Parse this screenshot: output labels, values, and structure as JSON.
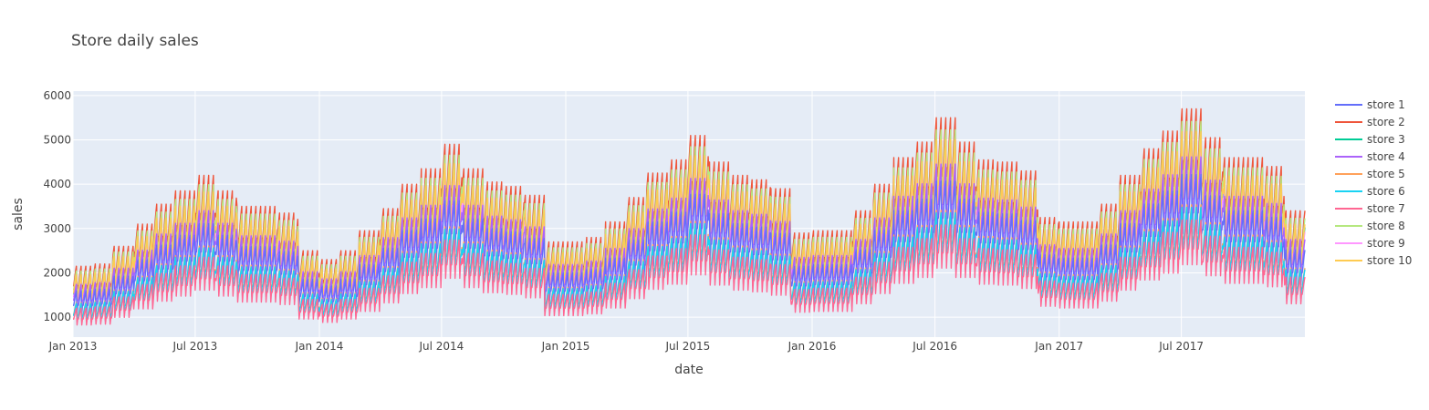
{
  "chart_data": {
    "type": "line",
    "title": "Store daily sales",
    "xlabel": "date",
    "ylabel": "sales",
    "x_range": [
      "2013-01-01",
      "2017-12-31"
    ],
    "y_range": [
      550,
      6100
    ],
    "x_tick_labels": [
      "Jan 2013",
      "Jul 2013",
      "Jan 2014",
      "Jul 2014",
      "Jan 2015",
      "Jul 2015",
      "Jan 2016",
      "Jul 2016",
      "Jan 2017",
      "Jul 2017"
    ],
    "x_tick_dates": [
      "2013-01-01",
      "2013-07-01",
      "2014-01-01",
      "2014-07-01",
      "2015-01-01",
      "2015-07-01",
      "2016-01-01",
      "2016-07-01",
      "2017-01-01",
      "2017-07-01"
    ],
    "y_ticks": [
      1000,
      2000,
      3000,
      4000,
      5000,
      6000
    ],
    "grid": true,
    "legend_position": "right",
    "plot_background": "#E5ECF6",
    "series": [
      {
        "name": "store 1",
        "color": "#636EFA",
        "level": 0.74
      },
      {
        "name": "store 2",
        "color": "#EF553B",
        "level": 1.0
      },
      {
        "name": "store 3",
        "color": "#00CC96",
        "level": 0.89
      },
      {
        "name": "store 4",
        "color": "#AB63FA",
        "level": 0.81
      },
      {
        "name": "store 5",
        "color": "#FFA15A",
        "level": 0.62
      },
      {
        "name": "store 6",
        "color": "#19D3F3",
        "level": 0.61
      },
      {
        "name": "store 7",
        "color": "#FF6692",
        "level": 0.56
      },
      {
        "name": "store 8",
        "color": "#B6E880",
        "level": 0.95
      },
      {
        "name": "store 9",
        "color": "#FF97FF",
        "level": 0.86
      },
      {
        "name": "store 10",
        "color": "#FECB52",
        "level": 0.91
      }
    ],
    "base_monthly_sales_store2": {
      "2013": [
        2150,
        2200,
        2600,
        3100,
        3550,
        3850,
        4200,
        3850,
        3500,
        3500,
        3350,
        2500
      ],
      "2014": [
        2300,
        2500,
        2950,
        3450,
        4000,
        4350,
        4900,
        4350,
        4050,
        3950,
        3750,
        2700
      ],
      "2015": [
        2700,
        2800,
        3150,
        3700,
        4250,
        4550,
        5100,
        4500,
        4200,
        4100,
        3900,
        2900
      ],
      "2016": [
        2950,
        2950,
        3400,
        4000,
        4600,
        4950,
        5500,
        4950,
        4550,
        4500,
        4300,
        3250
      ],
      "2017": [
        3150,
        3150,
        3550,
        4200,
        4800,
        5200,
        5700,
        5050,
        4600,
        4600,
        4400,
        3400
      ]
    },
    "weekly_pattern": [
      0.8,
      0.93,
      0.93,
      0.99,
      1.06,
      1.12,
      1.17
    ]
  }
}
